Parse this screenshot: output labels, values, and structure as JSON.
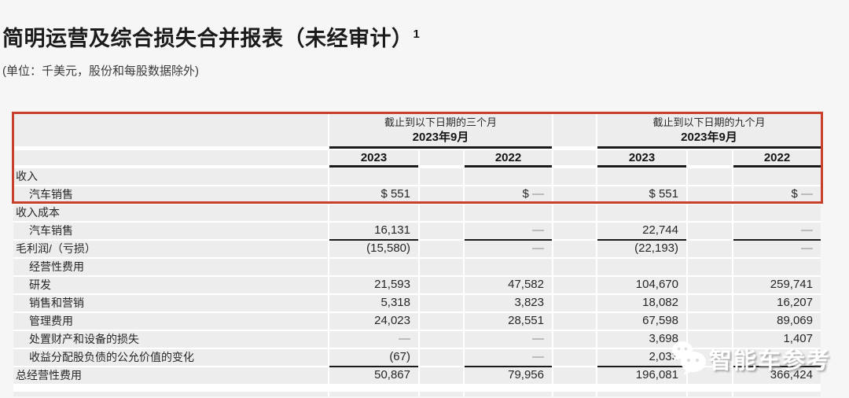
{
  "page": {
    "title": "简明运营及综合损失合并报表（未经审计）",
    "title_superscript": "1",
    "subtitle": "(单位：千美元，股份和每股数据除外)"
  },
  "table": {
    "groups": [
      {
        "period": "截止到以下日期的三个月",
        "date": "2023年9月"
      },
      {
        "period": "截止到以下日期的九个月",
        "date": "2023年9月"
      }
    ],
    "year_columns": [
      "2023",
      "2022",
      "2023",
      "2022"
    ],
    "rows": [
      {
        "label": "收入",
        "indent": 0,
        "values": [
          "",
          "",
          "",
          ""
        ]
      },
      {
        "label": "汽车销售",
        "indent": 1,
        "values": [
          "$ 551",
          "$ —",
          "$ 551",
          "$ —"
        ]
      },
      {
        "label": "收入成本",
        "indent": 0,
        "values": [
          "",
          "",
          "",
          ""
        ]
      },
      {
        "label": "汽车销售",
        "indent": 1,
        "values": [
          "16,131",
          "—",
          "22,744",
          "—"
        ],
        "rule_below": true
      },
      {
        "label": "毛利润/（亏损）",
        "indent": 0,
        "values": [
          "(15,580)",
          "—",
          "(22,193)",
          "—"
        ]
      },
      {
        "label": "经营性费用",
        "indent": 1,
        "values": [
          "",
          "",
          "",
          ""
        ]
      },
      {
        "label": "研发",
        "indent": 1,
        "values": [
          "21,593",
          "47,582",
          "104,670",
          "259,741"
        ]
      },
      {
        "label": "销售和营销",
        "indent": 1,
        "values": [
          "5,318",
          "3,823",
          "18,082",
          "16,207"
        ]
      },
      {
        "label": "管理费用",
        "indent": 1,
        "values": [
          "24,023",
          "28,551",
          "67,598",
          "89,069"
        ]
      },
      {
        "label": "处置财产和设备的损失",
        "indent": 1,
        "values": [
          "—",
          "—",
          "3,698",
          "1,407"
        ]
      },
      {
        "label": "收益分配股负债的公允价值的变化",
        "indent": 1,
        "values": [
          "(67)",
          "—",
          "2,033",
          ""
        ],
        "rule_below": true
      },
      {
        "label": "总经营性费用",
        "indent": 0,
        "values": [
          "50,867",
          "79,956",
          "196,081",
          "366,424"
        ]
      }
    ]
  },
  "highlight_box": {
    "color": "#c8402c"
  },
  "watermark": {
    "text": "智能车参考",
    "icon": "wechat-icon"
  }
}
